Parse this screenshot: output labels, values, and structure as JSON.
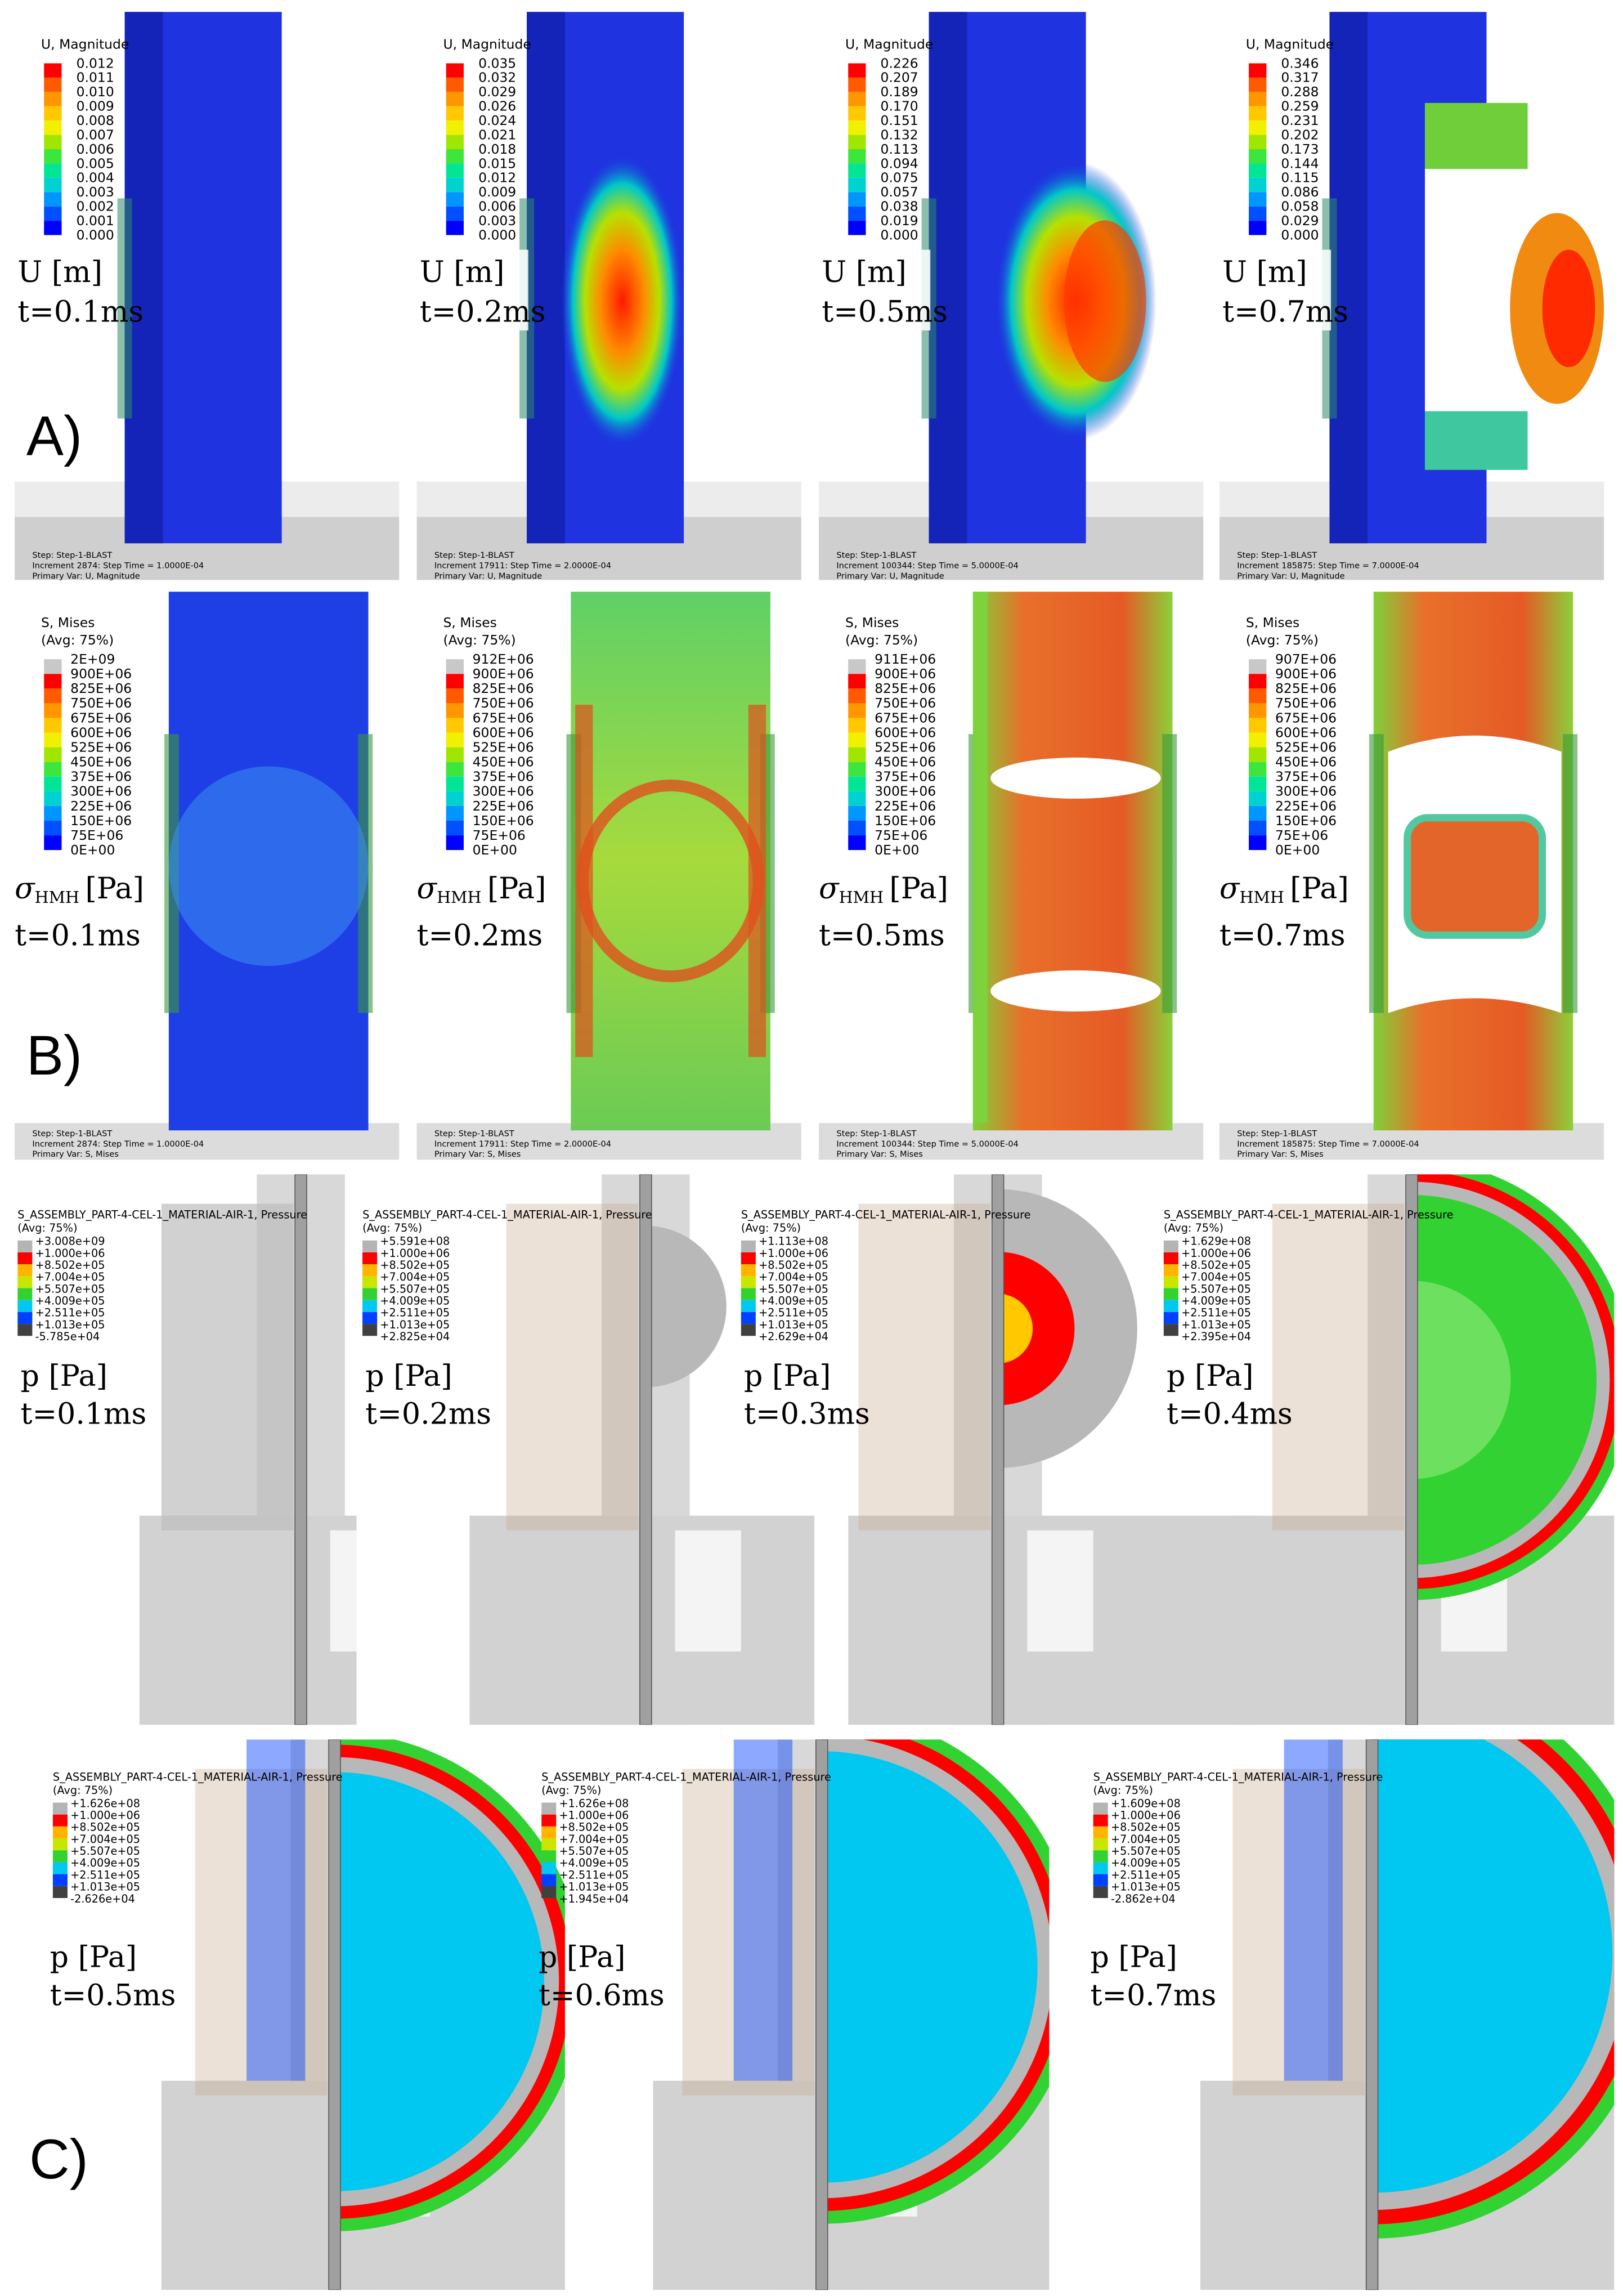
{
  "figure": {
    "rows": [
      {
        "label": "A)",
        "legend_title": "U, Magnitude",
        "quantity": "U [m]",
        "step": "Step: Step-1-BLAST",
        "primary": "Primary Var: U, Magnitude",
        "panels": [
          {
            "time": "t=0.1ms",
            "increment": "Increment    2874: Step Time =    1.0000E-04",
            "legend_values": [
              "0.012",
              "0.011",
              "0.010",
              "0.009",
              "0.008",
              "0.007",
              "0.006",
              "0.005",
              "0.004",
              "0.003",
              "0.002",
              "0.001",
              "0.000"
            ]
          },
          {
            "time": "t=0.2ms",
            "increment": "Increment   17911: Step Time =    2.0000E-04",
            "legend_values": [
              "0.035",
              "0.032",
              "0.029",
              "0.026",
              "0.024",
              "0.021",
              "0.018",
              "0.015",
              "0.012",
              "0.009",
              "0.006",
              "0.003",
              "0.000"
            ]
          },
          {
            "time": "t=0.5ms",
            "increment": "Increment  100344: Step Time =    5.0000E-04",
            "legend_values": [
              "0.226",
              "0.207",
              "0.189",
              "0.170",
              "0.151",
              "0.132",
              "0.113",
              "0.094",
              "0.075",
              "0.057",
              "0.038",
              "0.019",
              "0.000"
            ]
          },
          {
            "time": "t=0.7ms",
            "increment": "Increment  185875: Step Time =    7.0000E-04",
            "legend_values": [
              "0.346",
              "0.317",
              "0.288",
              "0.259",
              "0.231",
              "0.202",
              "0.173",
              "0.144",
              "0.115",
              "0.086",
              "0.058",
              "0.029",
              "0.000"
            ]
          }
        ]
      },
      {
        "label": "B)",
        "legend_title": "S, Mises",
        "avg": "(Avg: 75%)",
        "quantity_symbol": "σ",
        "quantity_subscript": "HMH",
        "quantity_unit": "[Pa]",
        "step": "Step: Step-1-BLAST",
        "primary": "Primary Var: S, Mises",
        "panels": [
          {
            "time": "t=0.1ms",
            "increment": "Increment    2874: Step Time =    1.0000E-04",
            "legend_values": [
              "2E+09",
              "900E+06",
              "825E+06",
              "750E+06",
              "675E+06",
              "600E+06",
              "525E+06",
              "450E+06",
              "375E+06",
              "300E+06",
              "225E+06",
              "150E+06",
              "75E+06",
              "0E+00"
            ]
          },
          {
            "time": "t=0.2ms",
            "increment": "Increment   17911: Step Time =    2.0000E-04",
            "legend_values": [
              "912E+06",
              "900E+06",
              "825E+06",
              "750E+06",
              "675E+06",
              "600E+06",
              "525E+06",
              "450E+06",
              "375E+06",
              "300E+06",
              "225E+06",
              "150E+06",
              "75E+06",
              "0E+00"
            ]
          },
          {
            "time": "t=0.5ms",
            "increment": "Increment  100344: Step Time =    5.0000E-04",
            "legend_values": [
              "911E+06",
              "900E+06",
              "825E+06",
              "750E+06",
              "675E+06",
              "600E+06",
              "525E+06",
              "450E+06",
              "375E+06",
              "300E+06",
              "225E+06",
              "150E+06",
              "75E+06",
              "0E+00"
            ]
          },
          {
            "time": "t=0.7ms",
            "increment": "Increment  185875: Step Time =    7.0000E-04",
            "legend_values": [
              "907E+06",
              "900E+06",
              "825E+06",
              "750E+06",
              "675E+06",
              "600E+06",
              "525E+06",
              "450E+06",
              "375E+06",
              "300E+06",
              "225E+06",
              "150E+06",
              "75E+06",
              "0E+00"
            ]
          }
        ]
      },
      {
        "label": "C)",
        "legend_title": "S_ASSEMBLY_PART-4-CEL-1_MATERIAL-AIR-1, Pressure",
        "avg": "(Avg: 75%)",
        "quantity": "p [Pa]",
        "panels": [
          {
            "time": "t=0.1ms",
            "legend_values": [
              "+3.008e+09",
              "+1.000e+06",
              "+8.502e+05",
              "+7.004e+05",
              "+5.507e+05",
              "+4.009e+05",
              "+2.511e+05",
              "+1.013e+05",
              "-5.785e+04"
            ]
          },
          {
            "time": "t=0.2ms",
            "legend_values": [
              "+5.591e+08",
              "+1.000e+06",
              "+8.502e+05",
              "+7.004e+05",
              "+5.507e+05",
              "+4.009e+05",
              "+2.511e+05",
              "+1.013e+05",
              "+2.825e+04"
            ]
          },
          {
            "time": "t=0.3ms",
            "legend_values": [
              "+1.113e+08",
              "+1.000e+06",
              "+8.502e+05",
              "+7.004e+05",
              "+5.507e+05",
              "+4.009e+05",
              "+2.511e+05",
              "+1.013e+05",
              "+2.629e+04"
            ]
          },
          {
            "time": "t=0.4ms",
            "legend_values": [
              "+1.629e+08",
              "+1.000e+06",
              "+8.502e+05",
              "+7.004e+05",
              "+5.507e+05",
              "+4.009e+05",
              "+2.511e+05",
              "+1.013e+05",
              "+2.395e+04"
            ]
          },
          {
            "time": "t=0.5ms",
            "legend_values": [
              "+1.626e+08",
              "+1.000e+06",
              "+8.502e+05",
              "+7.004e+05",
              "+5.507e+05",
              "+4.009e+05",
              "+2.511e+05",
              "+1.013e+05",
              "-2.626e+04"
            ]
          },
          {
            "time": "t=0.6ms",
            "legend_values": [
              "+1.626e+08",
              "+1.000e+06",
              "+8.502e+05",
              "+7.004e+05",
              "+5.507e+05",
              "+4.009e+05",
              "+2.511e+05",
              "+1.013e+05",
              "+1.945e+04"
            ]
          },
          {
            "time": "t=0.7ms",
            "legend_values": [
              "+1.609e+08",
              "+1.000e+06",
              "+8.502e+05",
              "+7.004e+05",
              "+5.507e+05",
              "+4.009e+05",
              "+2.511e+05",
              "+1.013e+05",
              "-2.862e+04"
            ]
          }
        ]
      }
    ]
  }
}
